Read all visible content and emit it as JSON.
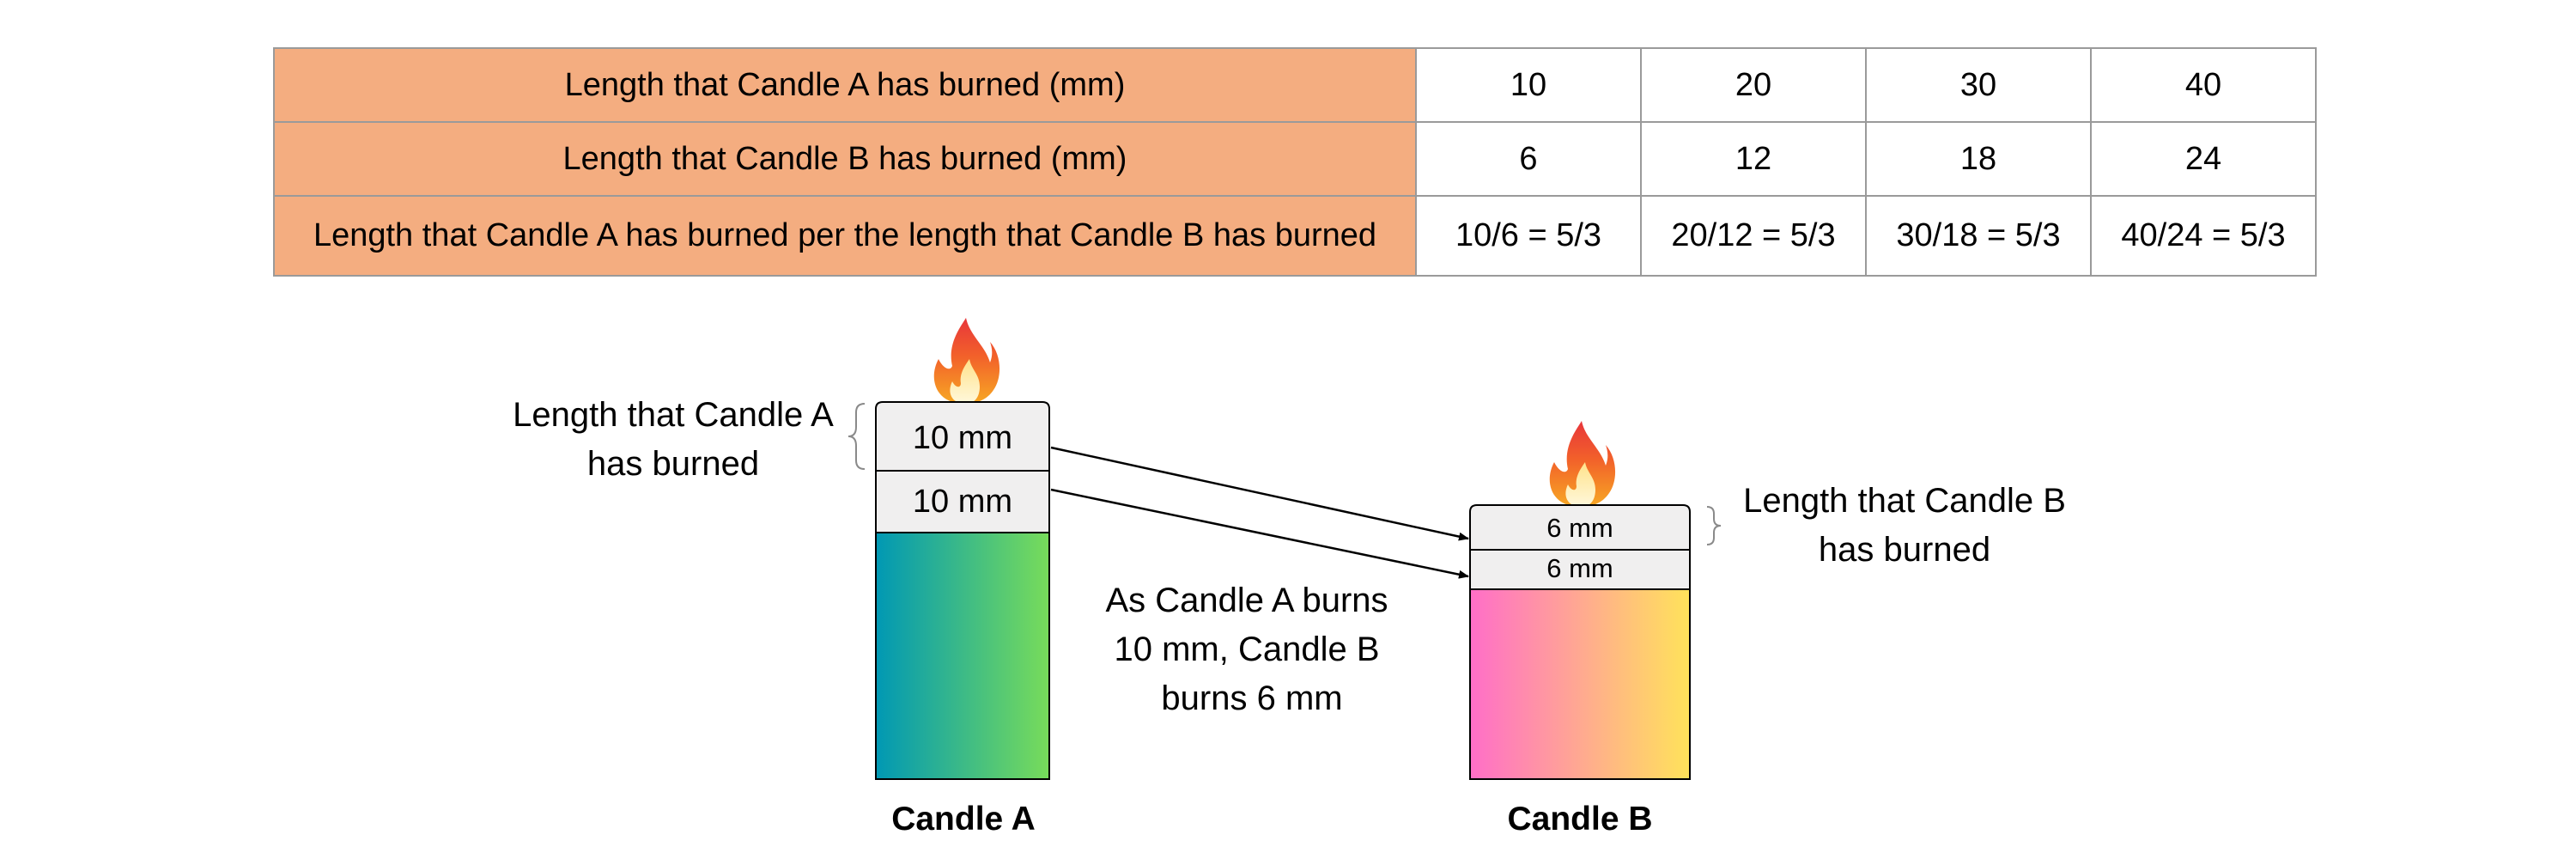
{
  "table": {
    "rows": [
      {
        "header": "Length that Candle A has burned (mm)",
        "values": [
          "10",
          "20",
          "30",
          "40"
        ]
      },
      {
        "header": "Length that Candle B has burned (mm)",
        "values": [
          "6",
          "12",
          "18",
          "24"
        ]
      },
      {
        "header": "Length that Candle A has burned per the length that Candle B has burned",
        "values": [
          "10/6 = 5/3",
          "20/12 = 5/3",
          "30/18 = 5/3",
          "40/24 = 5/3"
        ]
      }
    ],
    "header_color": "#f4ad80"
  },
  "diagram": {
    "candle_a": {
      "name": "Candle A",
      "segment_1": "10 mm",
      "segment_2": "10 mm",
      "gradient_colors": [
        "#0098b4",
        "#78dc5a"
      ],
      "label_line1": "Length that Candle A",
      "label_line2": "has burned"
    },
    "candle_b": {
      "name": "Candle B",
      "segment_1": "6 mm",
      "segment_2": "6 mm",
      "gradient_colors": [
        "#ff6ec8",
        "#ffe35a"
      ],
      "label_line1": "Length that Candle B",
      "label_line2": "has burned"
    },
    "note": {
      "line1": "As Candle A burns",
      "line2": "10 mm, Candle B",
      "line3": "burns 6 mm"
    },
    "flame_icon": "flame-icon"
  }
}
